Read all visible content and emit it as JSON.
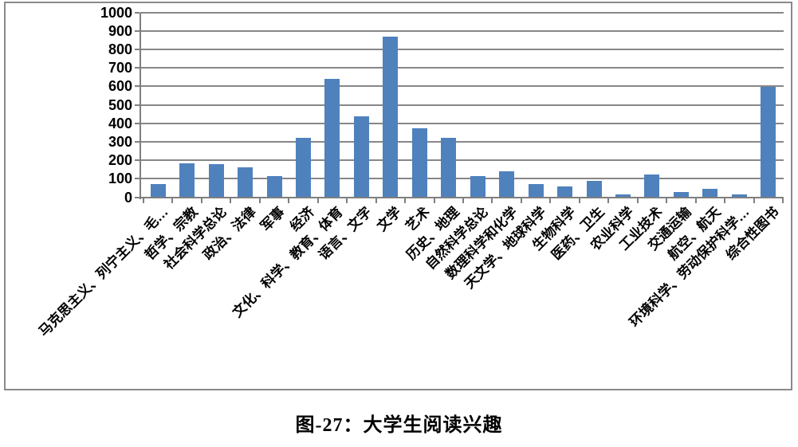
{
  "figure": {
    "caption": "图-27：大学生阅读兴趣"
  },
  "chart_data": {
    "type": "bar",
    "title": "图-27：大学生阅读兴趣",
    "categories": [
      "马克思主义、列宁主义、毛…",
      "哲学、宗教",
      "社会科学总论",
      "政治、法律",
      "军事",
      "经济",
      "文化、科学、教育、体育",
      "语言、文字",
      "文学",
      "艺术",
      "历史、地理",
      "自然科学总论",
      "数理科学和化学",
      "天文学、地球科学",
      "生物科学",
      "医药、卫生",
      "农业科学",
      "工业技术",
      "交通运输",
      "航空、航天",
      "环境科学、劳动保护科学…",
      "综合性图书"
    ],
    "values": [
      70,
      185,
      178,
      162,
      113,
      320,
      640,
      438,
      870,
      372,
      320,
      115,
      140,
      72,
      58,
      88,
      16,
      124,
      30,
      45,
      15,
      598
    ],
    "xlabel": "",
    "ylabel": "",
    "ylim": [
      0,
      1000
    ],
    "ytick_interval": 100,
    "grid": true,
    "legend": "none",
    "bar_color": "#4f81bd",
    "gridline_color": "#878787"
  }
}
